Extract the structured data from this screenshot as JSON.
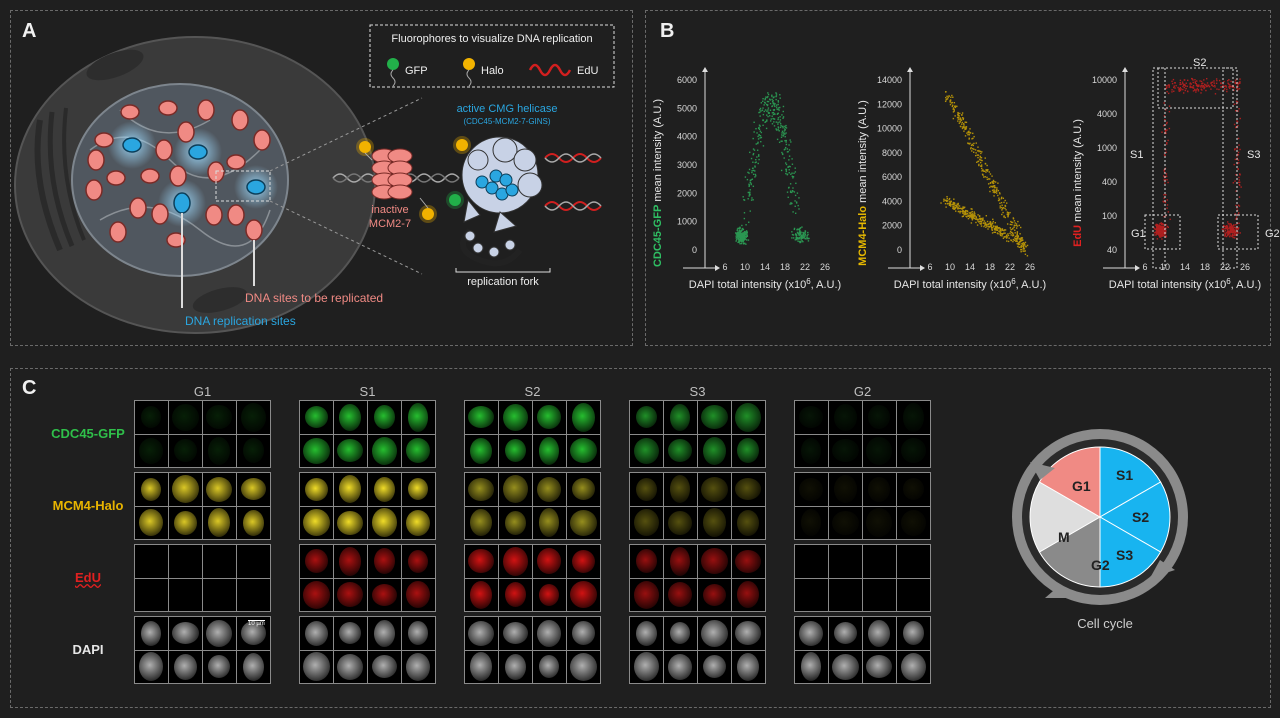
{
  "panel_a": {
    "label": "A",
    "legend_title": "Fluorophores to visualize DNA replication",
    "legend_gfp": "GFP",
    "legend_halo": "Halo",
    "legend_edu": "EdU",
    "active_cmg_title": "active CMG helicase",
    "active_cmg_sub": "(CDC45-MCM2-7-GINS)",
    "inactive_1": "inactive",
    "inactive_2": "MCM2-7",
    "fork_label": "replication fork",
    "sites_replicated": "DNA sites to be replicated",
    "replication_sites": "DNA replication sites",
    "colors": {
      "gfp": "#22b04a",
      "halo": "#f2b300",
      "edu": "#d11f1f",
      "mcm": "#f08a84",
      "cmg": "#2aa6e0"
    }
  },
  "panel_b": {
    "label": "B",
    "plots": [
      {
        "ylabel_colored": "CDC45-GFP",
        "ylabel_rest": " mean intensity (A.U.)",
        "color": "#2fbf63",
        "yticks": [
          "6000",
          "5000",
          "4000",
          "3000",
          "2000",
          "1000",
          "0"
        ]
      },
      {
        "ylabel_colored": "MCM4-Halo",
        "ylabel_rest": " mean intensity (A.U.)",
        "color": "#e6b800",
        "yticks": [
          "14000",
          "12000",
          "10000",
          "8000",
          "6000",
          "4000",
          "2000",
          "0"
        ]
      },
      {
        "ylabel_colored": "EdU",
        "ylabel_rest": " mean intensity (A.U.)",
        "color": "#e02020",
        "yticks": [
          "10000",
          "4000",
          "1000",
          "400",
          "100",
          "40"
        ]
      }
    ],
    "xticks": [
      "6",
      "10",
      "14",
      "18",
      "22",
      "26"
    ],
    "xlabel_pre": "DAPI total intensity (x10",
    "xlabel_sup": "6",
    "xlabel_post": ", A.U.)",
    "gates": {
      "s1": "S1",
      "s2": "S2",
      "s3": "S3",
      "g1": "G1",
      "g2": "G2"
    }
  },
  "panel_c": {
    "label": "C",
    "columns": [
      "G1",
      "S1",
      "S2",
      "S3",
      "G2"
    ],
    "rows": [
      {
        "label": "CDC45-GFP",
        "color": "#2fbf4a"
      },
      {
        "label": "MCM4-Halo",
        "color": "#e8b400"
      },
      {
        "label": "EdU",
        "color": "#e02020"
      },
      {
        "label": "DAPI",
        "color": "#e6e6e6"
      }
    ],
    "scale_bar": "10 µm",
    "cycle": {
      "g1": "G1",
      "s1": "S1",
      "s2": "S2",
      "s3": "S3",
      "m": "M",
      "g2": "G2",
      "caption": "Cell cycle"
    }
  }
}
